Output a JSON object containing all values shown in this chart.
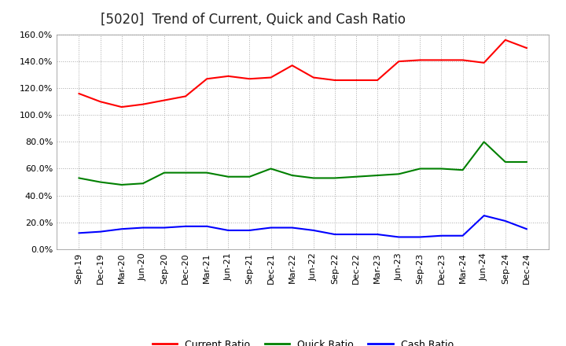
{
  "title": "[5020]  Trend of Current, Quick and Cash Ratio",
  "x_labels": [
    "Sep-19",
    "Dec-19",
    "Mar-20",
    "Jun-20",
    "Sep-20",
    "Dec-20",
    "Mar-21",
    "Jun-21",
    "Sep-21",
    "Dec-21",
    "Mar-22",
    "Jun-22",
    "Sep-22",
    "Dec-22",
    "Mar-23",
    "Jun-23",
    "Sep-23",
    "Dec-23",
    "Mar-24",
    "Jun-24",
    "Sep-24",
    "Dec-24"
  ],
  "current_ratio": [
    116,
    110,
    106,
    108,
    111,
    114,
    127,
    129,
    127,
    128,
    137,
    128,
    126,
    126,
    126,
    140,
    141,
    141,
    141,
    139,
    156,
    150
  ],
  "quick_ratio": [
    53,
    50,
    48,
    49,
    57,
    57,
    57,
    54,
    54,
    60,
    55,
    53,
    53,
    54,
    55,
    56,
    60,
    60,
    59,
    80,
    65,
    65
  ],
  "cash_ratio": [
    12,
    13,
    15,
    16,
    16,
    17,
    17,
    14,
    14,
    16,
    16,
    14,
    11,
    11,
    11,
    9,
    9,
    10,
    10,
    25,
    21,
    15
  ],
  "current_color": "#FF0000",
  "quick_color": "#008000",
  "cash_color": "#0000FF",
  "ylim": [
    0,
    160
  ],
  "yticks": [
    0,
    20,
    40,
    60,
    80,
    100,
    120,
    140,
    160
  ],
  "background_color": "#ffffff",
  "grid_color": "#aaaaaa",
  "title_fontsize": 12,
  "legend_fontsize": 9,
  "tick_fontsize": 8,
  "linewidth": 1.5
}
